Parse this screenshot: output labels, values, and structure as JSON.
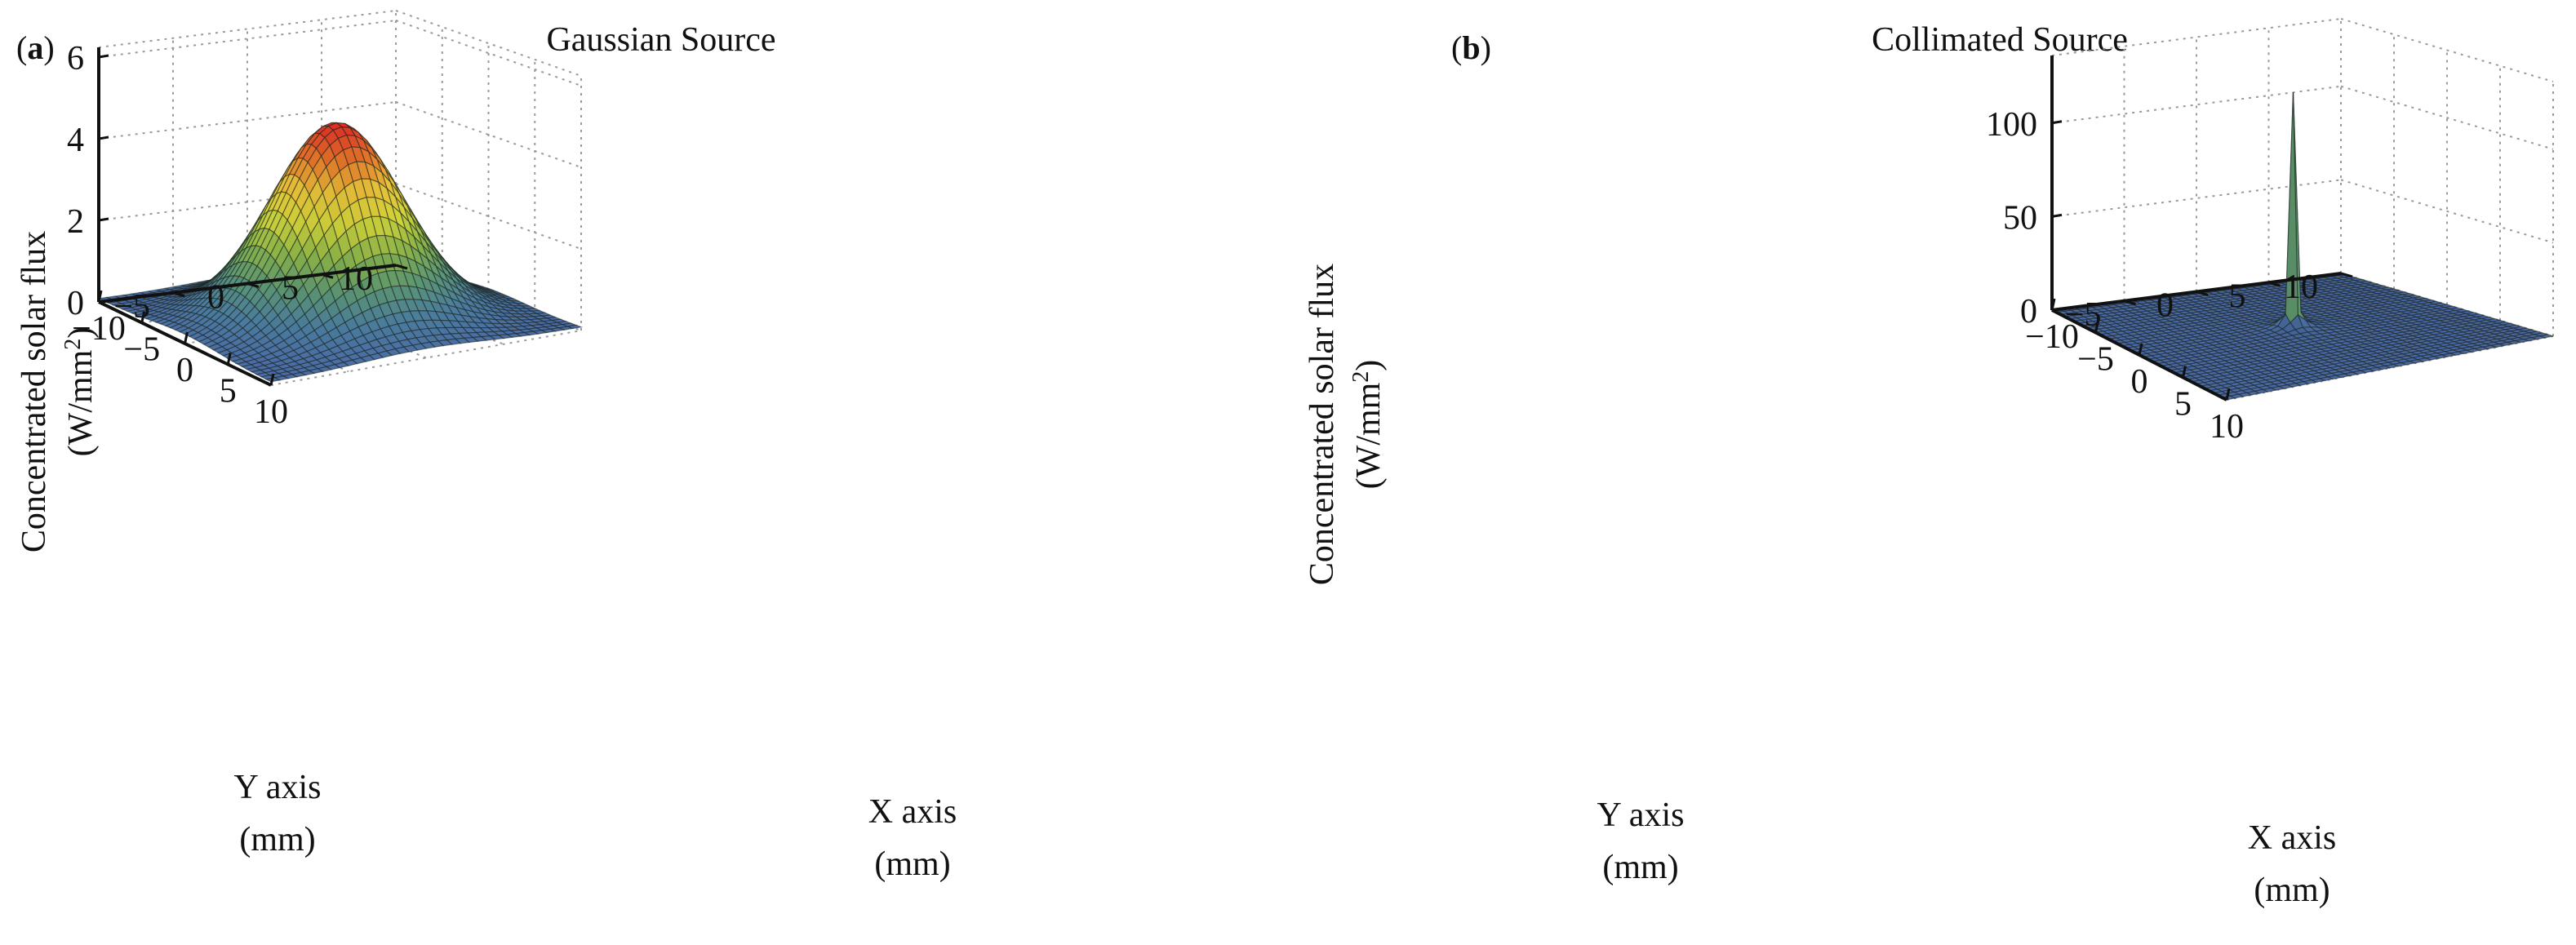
{
  "chart_data": [
    {
      "type": "surface",
      "panel_label_letter": "a",
      "title": "Gaussian Source",
      "xlabel": "X axis",
      "ylabel": "Y axis",
      "unit_label": "(mm)",
      "zlabel_line1": "Concentrated solar flux",
      "zlabel_line2_prefix": "(W/mm",
      "zlabel_line2_sup": "2",
      "zlabel_line2_suffix": ")",
      "xlim": [
        -10,
        10
      ],
      "ylim": [
        -10,
        10
      ],
      "zlim": [
        0,
        6
      ],
      "x_ticks": [
        {
          "value": -10,
          "label": "−10"
        },
        {
          "value": -5,
          "label": "−5"
        },
        {
          "value": 0,
          "label": "0"
        },
        {
          "value": 5,
          "label": "5"
        },
        {
          "value": 10,
          "label": "10"
        }
      ],
      "y_ticks": [
        {
          "value": 10,
          "label": "10"
        },
        {
          "value": 5,
          "label": "5"
        },
        {
          "value": 0,
          "label": "0"
        },
        {
          "value": -5,
          "label": "−5"
        }
      ],
      "z_ticks": [
        {
          "value": 0,
          "label": "0"
        },
        {
          "value": 2,
          "label": "2"
        },
        {
          "value": 4,
          "label": "4"
        },
        {
          "value": 6,
          "label": "6"
        }
      ],
      "surface": {
        "function": "gaussian",
        "peak": 4.85,
        "sigma_mm": 3.8,
        "grid_steps": 36
      },
      "colormap": [
        "#4a6aa8",
        "#4b7ea0",
        "#5e9a74",
        "#8eb84a",
        "#d6d83c",
        "#ecc43a",
        "#e8742a",
        "#dd2b26"
      ]
    },
    {
      "type": "surface",
      "panel_label_letter": "b",
      "title": "Collimated Source",
      "xlabel": "X axis",
      "ylabel": "Y axis",
      "unit_label": "(mm)",
      "zlabel_line1": "Concentrated solar flux",
      "zlabel_line2_prefix": "(W/mm",
      "zlabel_line2_sup": "2",
      "zlabel_line2_suffix": ")",
      "xlim": [
        -10,
        10
      ],
      "ylim": [
        -10,
        10
      ],
      "zlim": [
        0,
        130
      ],
      "x_ticks": [
        {
          "value": -10,
          "label": "−10"
        },
        {
          "value": -5,
          "label": "−5"
        },
        {
          "value": 0,
          "label": "0"
        },
        {
          "value": 5,
          "label": "5"
        },
        {
          "value": 10,
          "label": "10"
        }
      ],
      "y_ticks": [
        {
          "value": 10,
          "label": "10"
        },
        {
          "value": 5,
          "label": "5"
        },
        {
          "value": 0,
          "label": "0"
        },
        {
          "value": -5,
          "label": "−5"
        }
      ],
      "z_ticks": [
        {
          "value": 0,
          "label": "0"
        },
        {
          "value": 50,
          "label": "50"
        },
        {
          "value": 100,
          "label": "100"
        }
      ],
      "surface": {
        "function": "sharp_peak",
        "peak": 127,
        "grid_steps": 40
      },
      "colormap": [
        "#4a6aa8",
        "#4b7ea0",
        "#5e9a74",
        "#8eb84a",
        "#d6d83c",
        "#ecc43a",
        "#e8742a",
        "#dd2b26"
      ]
    }
  ]
}
